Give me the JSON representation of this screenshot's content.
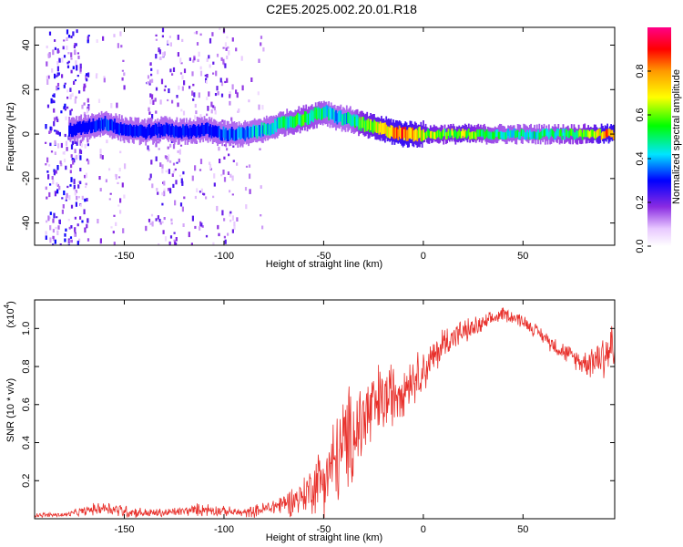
{
  "title": "C2E5.2025.002.20.01.R18",
  "chart_data": [
    {
      "type": "heatmap",
      "xlabel": "Height of straight line (km)",
      "ylabel": "Frequency (Hz)",
      "xlim": [
        -195,
        96
      ],
      "ylim": [
        -50,
        48
      ],
      "xticks": [
        -150,
        -100,
        -50,
        0,
        50
      ],
      "yticks": [
        -40,
        -20,
        0,
        20,
        40
      ],
      "ridge": {
        "x": [
          -175,
          -165,
          -160,
          -150,
          -140,
          -130,
          -120,
          -110,
          -100,
          -90,
          -80,
          -70,
          -60,
          -50,
          -45,
          -40,
          -35,
          -30,
          -20,
          -10,
          0,
          10,
          20,
          30,
          40,
          50,
          60,
          70,
          80,
          90,
          95
        ],
        "freq": [
          2,
          4,
          5,
          2,
          1,
          2,
          1,
          2,
          0,
          0,
          2,
          5,
          7,
          10,
          8,
          7,
          6,
          4,
          2,
          0,
          0,
          0,
          0,
          0,
          0,
          0,
          0,
          0,
          0,
          0,
          0
        ],
        "amplitude": [
          0.25,
          0.3,
          0.35,
          0.3,
          0.3,
          0.3,
          0.3,
          0.3,
          0.35,
          0.4,
          0.45,
          0.5,
          0.55,
          0.5,
          0.45,
          0.45,
          0.5,
          0.65,
          0.75,
          0.85,
          0.7,
          0.6,
          0.7,
          0.55,
          0.5,
          0.5,
          0.5,
          0.55,
          0.6,
          0.8,
          0.85
        ]
      },
      "colorbar": {
        "label": "Normalized spectral amplitude",
        "range": [
          0,
          1
        ],
        "ticks": [
          0.0,
          0.2,
          0.4,
          0.6,
          0.8
        ]
      }
    },
    {
      "type": "line",
      "xlabel": "Height of straight line (km)",
      "ylabel": "SNR (10 * v/v)",
      "scale_label": "(x10",
      "scale_exponent": "4",
      "xlim": [
        -195,
        96
      ],
      "ylim": [
        0,
        1.15
      ],
      "xticks": [
        -150,
        -100,
        -50,
        0,
        50
      ],
      "yticks": [
        0.2,
        0.4,
        0.6,
        0.8,
        1.0
      ],
      "series": [
        {
          "color": "#e8302b",
          "x": [
            -195,
            -180,
            -170,
            -160,
            -150,
            -140,
            -130,
            -120,
            -110,
            -100,
            -90,
            -80,
            -70,
            -60,
            -55,
            -50,
            -45,
            -40,
            -35,
            -30,
            -25,
            -20,
            -15,
            -10,
            -5,
            0,
            5,
            10,
            15,
            20,
            25,
            30,
            35,
            40,
            45,
            50,
            55,
            60,
            65,
            70,
            75,
            80,
            85,
            90,
            95
          ],
          "y": [
            0.02,
            0.02,
            0.04,
            0.06,
            0.04,
            0.03,
            0.03,
            0.04,
            0.05,
            0.04,
            0.03,
            0.05,
            0.08,
            0.12,
            0.18,
            0.22,
            0.28,
            0.38,
            0.45,
            0.52,
            0.58,
            0.62,
            0.66,
            0.7,
            0.74,
            0.78,
            0.84,
            0.92,
            0.96,
            0.98,
            1.0,
            1.02,
            1.05,
            1.08,
            1.06,
            1.04,
            1.0,
            0.96,
            0.92,
            0.88,
            0.85,
            0.82,
            0.84,
            0.86,
            0.9
          ],
          "noise": [
            0.01,
            0.01,
            0.02,
            0.03,
            0.03,
            0.02,
            0.02,
            0.02,
            0.03,
            0.02,
            0.02,
            0.03,
            0.05,
            0.08,
            0.12,
            0.16,
            0.2,
            0.22,
            0.22,
            0.22,
            0.18,
            0.16,
            0.14,
            0.12,
            0.1,
            0.1,
            0.08,
            0.08,
            0.06,
            0.05,
            0.05,
            0.04,
            0.03,
            0.03,
            0.03,
            0.03,
            0.03,
            0.03,
            0.04,
            0.04,
            0.04,
            0.05,
            0.08,
            0.12,
            0.12
          ]
        }
      ]
    }
  ]
}
